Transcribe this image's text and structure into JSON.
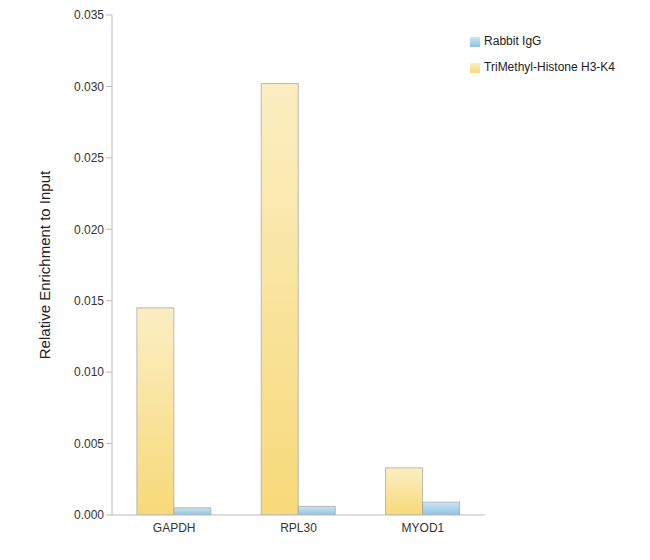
{
  "chart_data": {
    "type": "bar",
    "y_label": "Relative Enrichment to Input",
    "categories": [
      "GAPDH",
      "RPL30",
      "MYOD1"
    ],
    "series": [
      {
        "name": "TriMethyl-Histone H3-K4",
        "color": "#f7d978",
        "values": [
          0.0145,
          0.0302,
          0.0033
        ]
      },
      {
        "name": "Rabbit IgG",
        "color": "#8cc4e3",
        "values": [
          0.0005,
          0.0006,
          0.0009
        ]
      }
    ],
    "ylim": [
      0,
      0.035
    ],
    "yticks": [
      {
        "value": 0,
        "label": "0.000"
      },
      0.005,
      {
        "value": 0.01,
        "label": "0.010"
      },
      0.015,
      {
        "value": 0.02,
        "label": "0.020"
      },
      0.025,
      {
        "value": 0.03,
        "label": "0.030"
      },
      0.035
    ],
    "grid": false,
    "legend": "top-right"
  }
}
